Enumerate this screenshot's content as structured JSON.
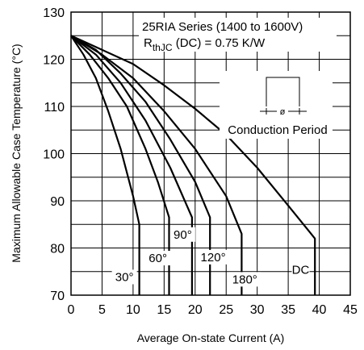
{
  "chart_data": {
    "type": "line",
    "annotation": {
      "line1": "25RIA Series (1400 to 1600V)",
      "line2_prefix": "R",
      "line2_sub": "thJC",
      "line2_suffix": " (DC) = 0.75 K/W",
      "inset_label": "Conduction Period",
      "inset_symbol": "ø"
    },
    "xlabel": "Average On-state Current (A)",
    "ylabel": "Maximum Allowable Case Temperature (°C)",
    "xlim": [
      0,
      45
    ],
    "ylim": [
      70,
      130
    ],
    "xticks": [
      "0",
      "5",
      "10",
      "15",
      "20",
      "25",
      "30",
      "35",
      "40",
      "45"
    ],
    "yticks": [
      "70",
      "80",
      "90",
      "100",
      "110",
      "120",
      "130"
    ],
    "grid": true,
    "series": [
      {
        "name": "30°",
        "x": [
          0,
          2,
          4,
          6,
          8,
          10,
          11,
          11
        ],
        "y": [
          125,
          121,
          116,
          109,
          101,
          91,
          85,
          70
        ]
      },
      {
        "name": "60°",
        "x": [
          0,
          3,
          6,
          9,
          12,
          14,
          15.8,
          15.8
        ],
        "y": [
          125,
          121,
          116,
          110,
          101,
          94,
          86.5,
          70
        ]
      },
      {
        "name": "90°",
        "x": [
          0,
          4,
          8,
          12,
          16,
          19.5,
          19.5
        ],
        "y": [
          125,
          121,
          115,
          107,
          97,
          86.5,
          70
        ]
      },
      {
        "name": "120°",
        "x": [
          0,
          4,
          8,
          12,
          16,
          20,
          22.4,
          22.4
        ],
        "y": [
          125,
          122,
          117,
          111,
          103,
          94,
          86.5,
          70
        ]
      },
      {
        "name": "180°",
        "x": [
          0,
          5,
          10,
          15,
          20,
          25,
          27.5,
          27.5
        ],
        "y": [
          125,
          121,
          116,
          109,
          101,
          91,
          83,
          70
        ]
      },
      {
        "name": "DC",
        "x": [
          0,
          5,
          10,
          15,
          20,
          25,
          30,
          35,
          39.3,
          39.3
        ],
        "y": [
          125,
          122,
          119,
          114.5,
          109.5,
          104,
          97,
          89,
          82,
          70
        ]
      }
    ]
  }
}
